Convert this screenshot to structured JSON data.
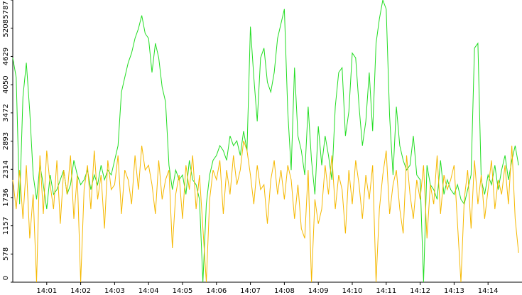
{
  "chart_data": {
    "type": "line",
    "x": [
      0,
      0.1,
      0.2,
      0.3,
      0.4,
      0.5,
      0.6,
      0.7,
      0.8,
      0.9,
      1,
      1.1,
      1.2,
      1.3,
      1.4,
      1.5,
      1.6,
      1.7,
      1.8,
      1.9,
      2,
      2.1,
      2.2,
      2.3,
      2.4,
      2.5,
      2.6,
      2.7,
      2.8,
      2.9,
      3,
      3.1,
      3.2,
      3.3,
      3.4,
      3.5,
      3.6,
      3.7,
      3.8,
      3.9,
      4,
      4.1,
      4.2,
      4.3,
      4.4,
      4.5,
      4.6,
      4.7,
      4.8,
      4.9,
      5,
      5.1,
      5.2,
      5.3,
      5.4,
      5.5,
      5.6,
      5.7,
      5.8,
      5.9,
      6,
      6.1,
      6.2,
      6.3,
      6.4,
      6.5,
      6.6,
      6.7,
      6.8,
      6.9,
      7,
      7.1,
      7.2,
      7.3,
      7.4,
      7.5,
      7.6,
      7.7,
      7.8,
      7.9,
      8,
      8.1,
      8.2,
      8.3,
      8.4,
      8.5,
      8.6,
      8.7,
      8.8,
      8.9,
      9,
      9.1,
      9.2,
      9.3,
      9.4,
      9.5,
      9.6,
      9.7,
      9.8,
      9.9,
      10,
      10.1,
      10.2,
      10.3,
      10.4,
      10.5,
      10.6,
      10.7,
      10.8,
      10.9,
      11,
      11.1,
      11.2,
      11.3,
      11.4,
      11.5,
      11.6,
      11.7,
      11.8,
      11.9,
      12,
      12.1,
      12.2,
      12.3,
      12.4,
      12.5,
      12.6,
      12.7,
      12.8,
      12.9,
      13,
      13.1,
      13.2,
      13.3,
      13.4,
      13.5,
      13.6,
      13.7,
      13.8,
      13.9,
      14,
      14.1,
      14.2,
      14.3,
      14.4,
      14.5,
      14.6,
      14.7,
      14.8,
      14.9
    ],
    "series": [
      {
        "color": "#22dd22",
        "values": [
          4600,
          4200,
          1600,
          3800,
          4500,
          3500,
          2200,
          1700,
          2400,
          2000,
          1500,
          2200,
          1800,
          1900,
          2100,
          2300,
          1800,
          2000,
          2500,
          2200,
          2000,
          2100,
          2300,
          1900,
          2200,
          2000,
          2400,
          2100,
          2300,
          2200,
          2500,
          2800,
          3900,
          4200,
          4500,
          4700,
          5000,
          5200,
          5470,
          5100,
          5000,
          4300,
          4900,
          4600,
          4000,
          3700,
          2400,
          1900,
          2300,
          2100,
          2200,
          1800,
          2500,
          2100,
          2000,
          1700,
          0,
          1600,
          2200,
          2500,
          2600,
          2800,
          2700,
          2500,
          3000,
          2800,
          2900,
          2600,
          3100,
          2700,
          5240,
          4200,
          3300,
          4600,
          4800,
          4100,
          3900,
          4300,
          5000,
          5300,
          5600,
          3500,
          2300,
          4400,
          3000,
          2700,
          2200,
          3600,
          2500,
          1800,
          3200,
          2400,
          3000,
          2600,
          2100,
          3600,
          4300,
          4400,
          3000,
          3500,
          4700,
          4600,
          3600,
          2800,
          3300,
          4300,
          3100,
          4900,
          5400,
          5787,
          5600,
          3400,
          2200,
          3600,
          2800,
          2500,
          2300,
          2400,
          3000,
          2200,
          2100,
          0,
          2400,
          2000,
          1900,
          1700,
          2500,
          1800,
          2100,
          1900,
          1800,
          2000,
          1700,
          1600,
          1900,
          2200,
          4800,
          4900,
          2100,
          1800,
          2200,
          2000,
          2400,
          1900,
          2300,
          2600,
          2100,
          2500,
          2800,
          2400
        ]
      },
      {
        "color": "#f5b800",
        "values": [
          2100,
          1500,
          2300,
          1300,
          2400,
          900,
          1800,
          0,
          2600,
          1400,
          2700,
          2000,
          1500,
          2500,
          1200,
          2300,
          1800,
          2600,
          1300,
          2200,
          0,
          1900,
          2400,
          1500,
          2700,
          1700,
          2200,
          1100,
          2500,
          1900,
          2000,
          2600,
          1400,
          2300,
          2100,
          1600,
          2600,
          1900,
          2800,
          2300,
          2400,
          2000,
          1400,
          2500,
          1700,
          2100,
          2300,
          700,
          1800,
          2200,
          1300,
          2400,
          1900,
          2600,
          1500,
          2200,
          1100,
          0,
          1700,
          2300,
          2100,
          2500,
          1400,
          2300,
          1800,
          2600,
          2000,
          2300,
          2900,
          2700,
          2200,
          1600,
          2400,
          1900,
          2000,
          1200,
          2100,
          2500,
          1800,
          2300,
          1700,
          2400,
          2100,
          1300,
          2000,
          1100,
          900,
          2300,
          0,
          1700,
          1200,
          1500,
          2400,
          1800,
          2600,
          1500,
          2200,
          1900,
          1000,
          2300,
          1600,
          2500,
          2000,
          1300,
          2200,
          1700,
          2400,
          0,
          1500,
          2200,
          2700,
          1400,
          2000,
          2300,
          1500,
          1000,
          2600,
          1800,
          1300,
          2100,
          1700,
          2400,
          900,
          2000,
          1600,
          2600,
          1400,
          2200,
          1900,
          2100,
          2400,
          1200,
          0,
          1700,
          2300,
          1100,
          2500,
          1600,
          2200,
          1300,
          1900,
          2500,
          1500,
          2100,
          1800,
          2400,
          1600,
          2800,
          1300,
          600
        ]
      }
    ],
    "xlim": [
      0,
      15
    ],
    "xticks": [
      {
        "value": 1,
        "label": "14:01"
      },
      {
        "value": 2,
        "label": "14:02"
      },
      {
        "value": 3,
        "label": "14:03"
      },
      {
        "value": 4,
        "label": "14:04"
      },
      {
        "value": 5,
        "label": "14:05"
      },
      {
        "value": 6,
        "label": "14:06"
      },
      {
        "value": 7,
        "label": "14:07"
      },
      {
        "value": 8,
        "label": "14:08"
      },
      {
        "value": 9,
        "label": "14:09"
      },
      {
        "value": 10,
        "label": "14:10"
      },
      {
        "value": 11,
        "label": "14:11"
      },
      {
        "value": 12,
        "label": "14:12"
      },
      {
        "value": 13,
        "label": "14:13"
      },
      {
        "value": 14,
        "label": "14:14"
      }
    ],
    "ylim": [
      0,
      5787
    ],
    "yticks": [
      0,
      578,
      1157,
      1736,
      2314,
      2893,
      3472,
      4050,
      4629,
      5208,
      5787
    ]
  }
}
